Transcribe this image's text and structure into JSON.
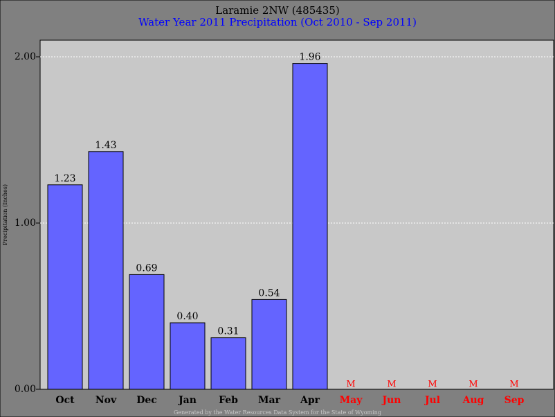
{
  "chart_data": {
    "type": "bar",
    "title": "Laramie 2NW (485435)",
    "subtitle": "Water Year 2011 Precipitation (Oct 2010 - Sep 2011)",
    "y_label": "Precipitation (Inches)",
    "footer": "Generated by the Water Resources Data System for the State of Wyoming",
    "categories": [
      "Oct",
      "Nov",
      "Dec",
      "Jan",
      "Feb",
      "Mar",
      "Apr",
      "May",
      "Jun",
      "Jul",
      "Aug",
      "Sep"
    ],
    "values": [
      1.23,
      1.43,
      0.69,
      0.4,
      0.31,
      0.54,
      1.96,
      null,
      null,
      null,
      null,
      null
    ],
    "value_labels": [
      "1.23",
      "1.43",
      "0.69",
      "0.40",
      "0.31",
      "0.54",
      "1.96",
      "M",
      "M",
      "M",
      "M",
      "M"
    ],
    "color": "#6464ff",
    "missing_color": "#ff0000",
    "ylim": [
      0,
      2.1
    ],
    "yticks": [
      {
        "value": 0,
        "label": "0.00"
      },
      {
        "value": 1,
        "label": "1.00"
      },
      {
        "value": 2,
        "label": "2.00"
      }
    ],
    "grid": true
  }
}
